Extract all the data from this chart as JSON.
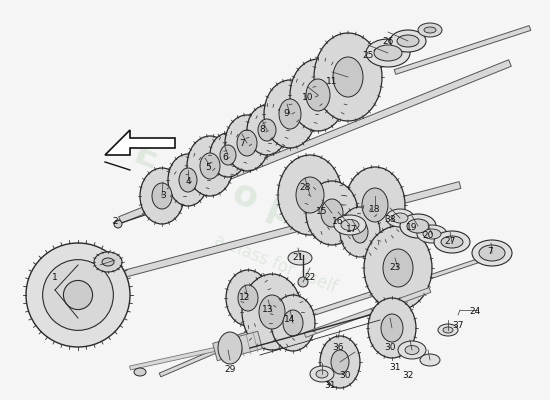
{
  "background_color": "#f5f5f5",
  "line_color": "#2a2a2a",
  "gear_face": "#e8e8e8",
  "gear_edge": "#2a2a2a",
  "shaft_color": "#c0c0c0",
  "shaft_edge": "#555555",
  "watermark1": "E u r o p a r t s",
  "watermark2": "a class for itself",
  "wm_color": "#b8d4b8",
  "wm_alpha": 0.35,
  "arrow_color": "#111111",
  "label_fs": 6.5,
  "label_color": "#111111",
  "fig_w": 5.5,
  "fig_h": 4.0,
  "dpi": 100,
  "labels": [
    [
      "1",
      55,
      278
    ],
    [
      "2",
      115,
      222
    ],
    [
      "3",
      163,
      195
    ],
    [
      "4",
      188,
      181
    ],
    [
      "5",
      208,
      168
    ],
    [
      "6",
      225,
      157
    ],
    [
      "7",
      242,
      144
    ],
    [
      "8",
      262,
      130
    ],
    [
      "9",
      286,
      114
    ],
    [
      "10",
      308,
      98
    ],
    [
      "11",
      332,
      82
    ],
    [
      "25",
      368,
      55
    ],
    [
      "26",
      388,
      42
    ],
    [
      "28",
      305,
      188
    ],
    [
      "15",
      322,
      211
    ],
    [
      "16",
      338,
      222
    ],
    [
      "17",
      352,
      230
    ],
    [
      "21",
      298,
      258
    ],
    [
      "22",
      310,
      278
    ],
    [
      "18",
      375,
      210
    ],
    [
      "38",
      390,
      220
    ],
    [
      "19",
      412,
      228
    ],
    [
      "20",
      428,
      235
    ],
    [
      "27",
      450,
      242
    ],
    [
      "7",
      490,
      252
    ],
    [
      "23",
      395,
      268
    ],
    [
      "12",
      245,
      298
    ],
    [
      "13",
      268,
      310
    ],
    [
      "14",
      290,
      320
    ],
    [
      "29",
      230,
      370
    ],
    [
      "36",
      338,
      348
    ],
    [
      "30",
      390,
      348
    ],
    [
      "31",
      395,
      368
    ],
    [
      "32",
      408,
      375
    ],
    [
      "30",
      345,
      375
    ],
    [
      "31",
      330,
      385
    ],
    [
      "37",
      458,
      325
    ],
    [
      "24",
      475,
      312
    ]
  ]
}
